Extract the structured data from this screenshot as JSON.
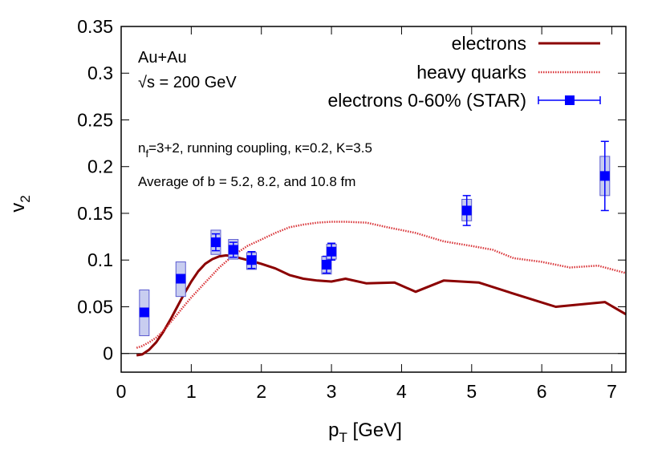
{
  "chart_data": {
    "type": "line",
    "xlabel": {
      "main": "p",
      "sub": "T",
      "rest": " [GeV]"
    },
    "ylabel": {
      "main": "v",
      "sub": "2"
    },
    "xlim": [
      0,
      7.2
    ],
    "ylim": [
      -0.02,
      0.35
    ],
    "x_ticks": [
      0,
      1,
      2,
      3,
      4,
      5,
      6,
      7
    ],
    "y_ticks": [
      0,
      0.05,
      0.1,
      0.15,
      0.2,
      0.25,
      0.3,
      0.35
    ],
    "x_tick_labels": [
      "0",
      "1",
      "2",
      "3",
      "4",
      "5",
      "6",
      "7"
    ],
    "y_tick_labels": [
      "0",
      "0.05",
      "0.1",
      "0.15",
      "0.2",
      "0.25",
      "0.3",
      "0.35"
    ],
    "zero_line": true,
    "legend_position": "top-right",
    "annotations": {
      "system": "Au+Au",
      "energy": {
        "root": "√",
        "rest": "s = 200 GeV"
      },
      "params": {
        "n": "n",
        "sub": "f",
        "rest": "=3+2, running coupling, κ=0.2, K=3.5"
      },
      "average": "Average of b = 5.2, 8.2, and 10.8 fm"
    },
    "series": [
      {
        "name": "electrons",
        "style": "solid",
        "color": "#8b0000",
        "x": [
          0.22,
          0.3,
          0.4,
          0.5,
          0.6,
          0.7,
          0.8,
          0.9,
          1.0,
          1.1,
          1.2,
          1.3,
          1.4,
          1.5,
          1.6,
          1.7,
          1.8,
          1.9,
          2.0,
          2.2,
          2.4,
          2.6,
          2.8,
          3.0,
          3.2,
          3.5,
          3.9,
          4.2,
          4.6,
          5.1,
          5.6,
          6.2,
          6.9,
          7.2
        ],
        "values": [
          -0.002,
          -0.001,
          0.004,
          0.012,
          0.023,
          0.036,
          0.05,
          0.064,
          0.077,
          0.088,
          0.096,
          0.101,
          0.104,
          0.105,
          0.104,
          0.102,
          0.1,
          0.098,
          0.096,
          0.091,
          0.084,
          0.08,
          0.078,
          0.077,
          0.08,
          0.075,
          0.076,
          0.066,
          0.078,
          0.076,
          0.064,
          0.05,
          0.055,
          0.042
        ]
      },
      {
        "name": "heavy quarks",
        "style": "dotted",
        "color": "#d9363a",
        "x": [
          0.22,
          0.3,
          0.4,
          0.5,
          0.6,
          0.7,
          0.8,
          0.9,
          1.0,
          1.2,
          1.4,
          1.6,
          1.8,
          2.0,
          2.2,
          2.4,
          2.6,
          2.8,
          3.0,
          3.2,
          3.5,
          3.8,
          4.2,
          4.6,
          5.0,
          5.3,
          5.6,
          6.0,
          6.4,
          6.8,
          7.2
        ],
        "values": [
          0.006,
          0.008,
          0.012,
          0.017,
          0.024,
          0.033,
          0.042,
          0.051,
          0.06,
          0.076,
          0.092,
          0.105,
          0.115,
          0.122,
          0.129,
          0.135,
          0.138,
          0.14,
          0.141,
          0.141,
          0.14,
          0.135,
          0.129,
          0.12,
          0.115,
          0.111,
          0.102,
          0.098,
          0.092,
          0.094,
          0.086
        ]
      }
    ],
    "data_points": {
      "name": "electrons 0-60% (STAR)",
      "color": "#0000ff",
      "points": [
        {
          "x": 0.33,
          "y": 0.044,
          "stat_err": 0.0,
          "sys_low": 0.025,
          "sys_high": 0.024
        },
        {
          "x": 0.85,
          "y": 0.08,
          "stat_err": 0.0,
          "sys_low": 0.019,
          "sys_high": 0.018
        },
        {
          "x": 1.35,
          "y": 0.119,
          "stat_err": 0.009,
          "sys_low": 0.013,
          "sys_high": 0.013
        },
        {
          "x": 1.6,
          "y": 0.111,
          "stat_err": 0.008,
          "sys_low": 0.01,
          "sys_high": 0.011
        },
        {
          "x": 1.86,
          "y": 0.1,
          "stat_err": 0.009,
          "sys_low": 0.01,
          "sys_high": 0.008
        },
        {
          "x": 2.93,
          "y": 0.095,
          "stat_err": 0.009,
          "sys_low": 0.01,
          "sys_high": 0.009
        },
        {
          "x": 3.0,
          "y": 0.109,
          "stat_err": 0.009,
          "sys_low": 0.008,
          "sys_high": 0.008
        },
        {
          "x": 4.93,
          "y": 0.153,
          "stat_err": 0.016,
          "sys_low": 0.011,
          "sys_high": 0.012
        },
        {
          "x": 6.9,
          "y": 0.19,
          "stat_err": 0.037,
          "sys_low": 0.021,
          "sys_high": 0.021
        }
      ]
    }
  }
}
